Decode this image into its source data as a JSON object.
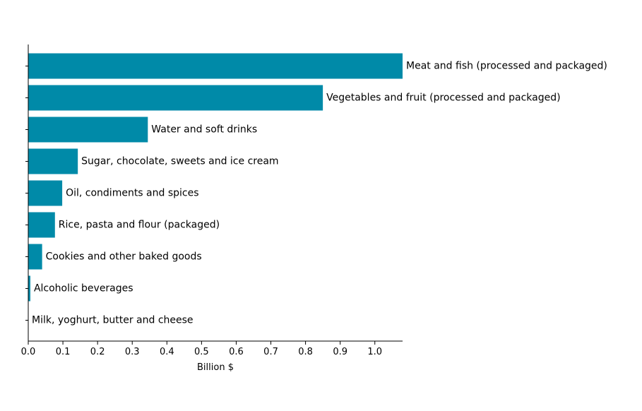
{
  "chart_data": {
    "type": "bar",
    "orientation": "horizontal",
    "categories": [
      "Meat and fish (processed and packaged)",
      "Vegetables and fruit (processed and packaged)",
      "Water and soft drinks",
      "Sugar, chocolate, sweets and ice cream",
      "Oil, condiments and spices",
      "Rice, pasta and flour (packaged)",
      "Cookies and other baked goods",
      "Alcoholic beverages",
      "Milk, yoghurt, butter and cheese"
    ],
    "values": [
      1.08,
      0.85,
      0.345,
      0.143,
      0.098,
      0.077,
      0.04,
      0.006,
      0.0
    ],
    "xlabel": "Billion $",
    "xlim": [
      0,
      1.08
    ],
    "xticks": [
      "0.0",
      "0.1",
      "0.2",
      "0.3",
      "0.4",
      "0.5",
      "0.6",
      "0.7",
      "0.8",
      "0.9",
      "1.0"
    ],
    "bar_color": "#008aa8",
    "grid": false,
    "legend": "none",
    "labels_position": "end-of-bar"
  }
}
